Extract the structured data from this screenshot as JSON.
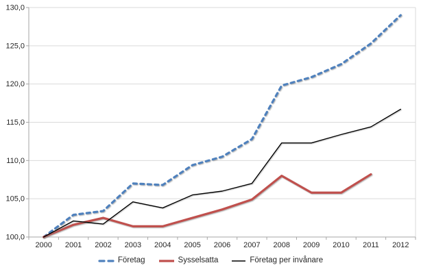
{
  "chart_data": {
    "type": "line",
    "title": "",
    "xlabel": "",
    "ylabel": "",
    "x": [
      2000,
      2001,
      2002,
      2003,
      2004,
      2005,
      2006,
      2007,
      2008,
      2009,
      2010,
      2011,
      2012
    ],
    "xtick_labels": [
      "2000",
      "2001",
      "2002",
      "2003",
      "2004",
      "2005",
      "2006",
      "2007",
      "2008",
      "2009",
      "2010",
      "2011",
      "2012"
    ],
    "ylim": [
      100,
      130
    ],
    "ytick_step": 5,
    "ytick_labels": [
      "100,0",
      "105,0",
      "110,0",
      "115,0",
      "120,0",
      "125,0",
      "130,0"
    ],
    "grid": true,
    "legend_position": "bottom",
    "series": [
      {
        "name": "Företag",
        "color": "#4F81BD",
        "style": "dashed",
        "width": 3.2,
        "values": [
          100.0,
          102.9,
          103.4,
          107.0,
          106.8,
          109.4,
          110.5,
          112.8,
          119.8,
          120.9,
          122.6,
          125.3,
          129.0
        ]
      },
      {
        "name": "Sysselsatta",
        "color": "#C0504D",
        "style": "solid",
        "width": 3.2,
        "values": [
          100.0,
          101.6,
          102.5,
          101.4,
          101.4,
          102.5,
          103.6,
          104.9,
          108.0,
          105.8,
          105.8,
          108.2
        ]
      },
      {
        "name": "Företag per invånare",
        "color": "#000000",
        "style": "solid",
        "width": 1.4,
        "values": [
          100.0,
          102.1,
          101.7,
          104.6,
          103.8,
          105.5,
          106.0,
          107.0,
          112.3,
          112.3,
          113.4,
          114.4,
          116.7
        ]
      }
    ],
    "colors": {
      "gridline": "#D9D9D9",
      "axis": "#A6A6A6",
      "plot_right_border": "#D9D9D9",
      "tick_text": "#262626"
    }
  }
}
